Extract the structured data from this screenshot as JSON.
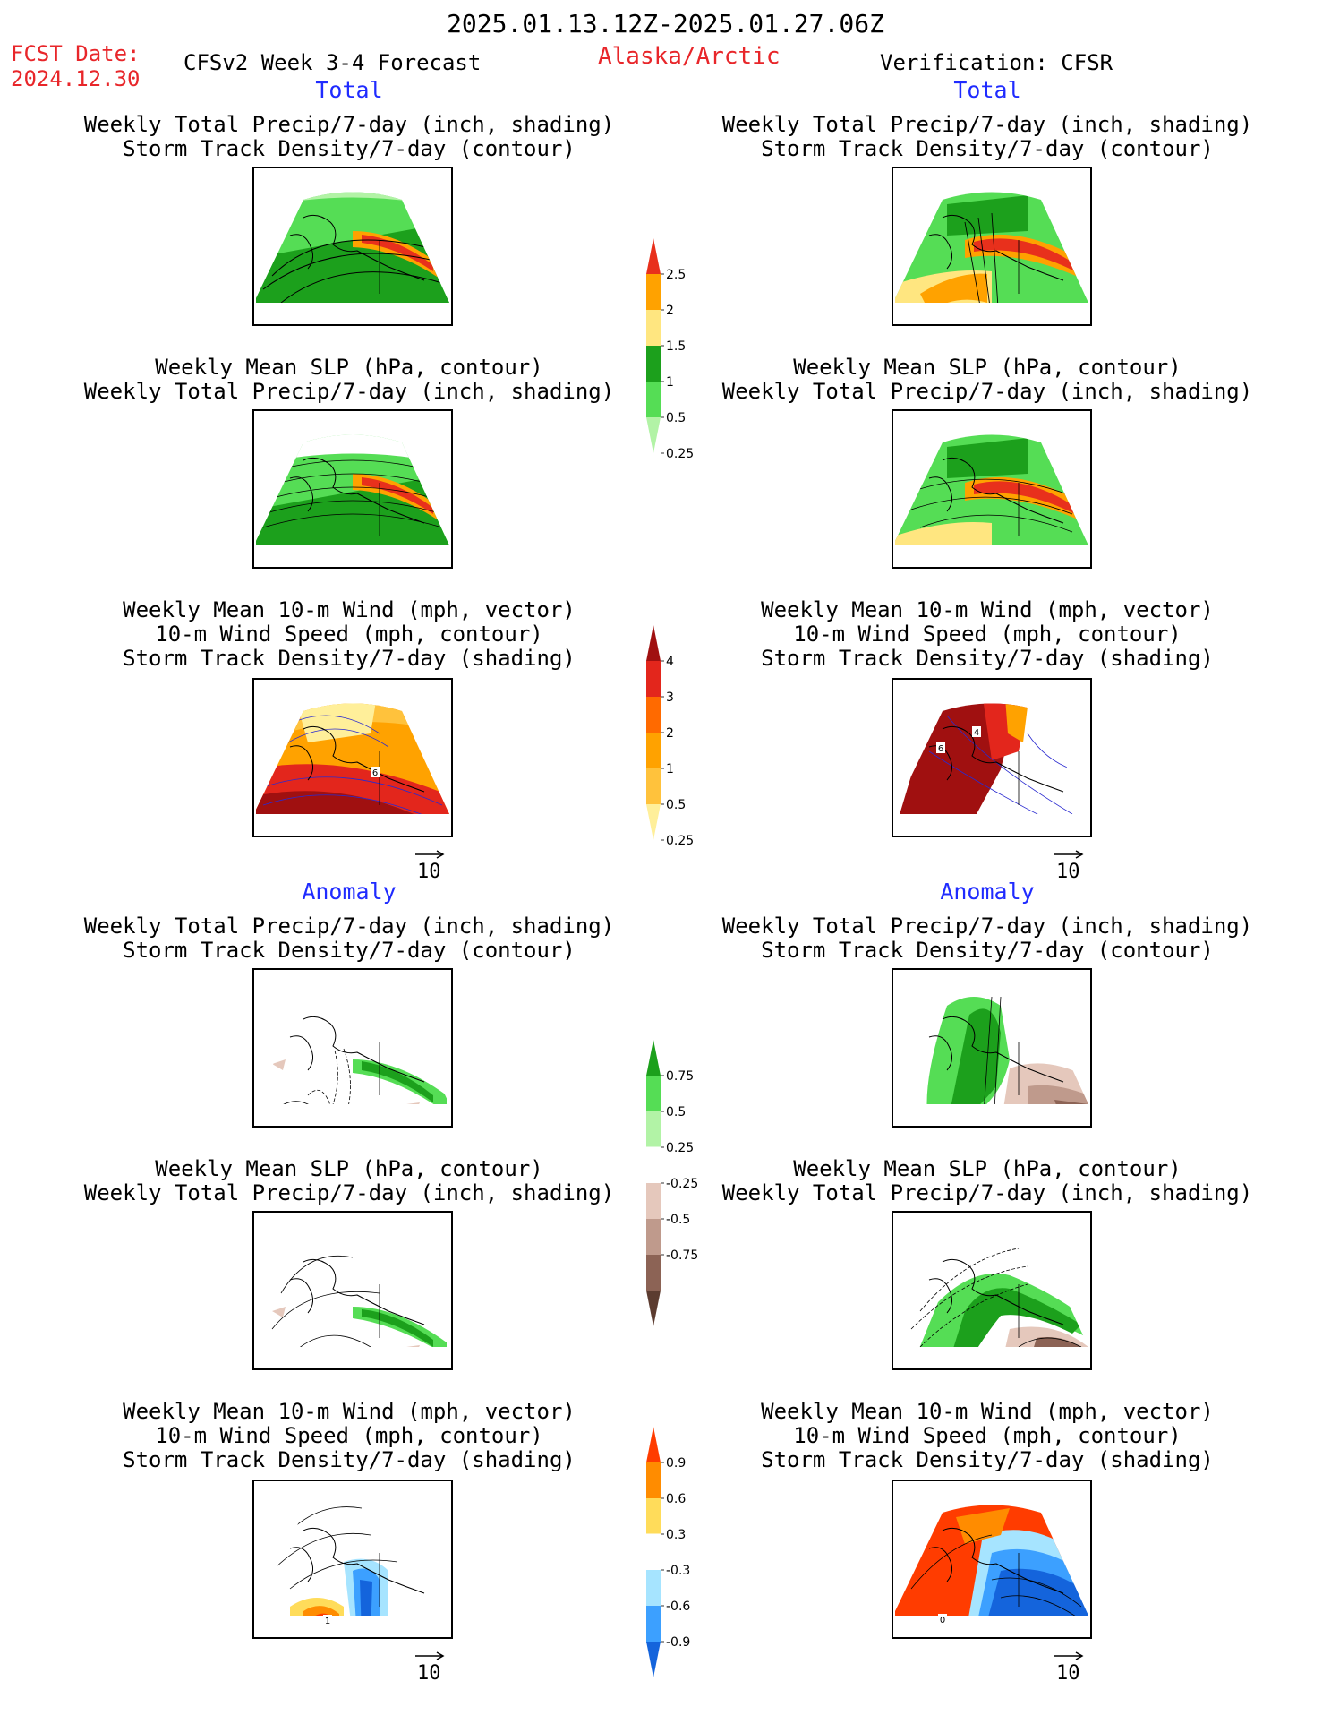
{
  "header": {
    "period": "2025.01.13.12Z-2025.01.27.06Z",
    "fcst_date_label": "FCST Date:",
    "fcst_date_value": "2024.12.30",
    "model": "CFSv2 Week 3-4 Forecast",
    "region": "Alaska/Arctic",
    "verification": "Verification: CFSR"
  },
  "sections": {
    "total_left": "Total",
    "total_right": "Total",
    "anomaly_left": "Anomaly",
    "anomaly_right": "Anomaly"
  },
  "panel_titles": {
    "precip_storm": [
      "Weekly Total Precip/7-day (inch, shading)",
      "Storm Track Density/7-day (contour)"
    ],
    "slp_precip": [
      "Weekly Mean SLP (hPa, contour)",
      "Weekly Total Precip/7-day (inch, shading)"
    ],
    "wind_storm": [
      "Weekly Mean 10-m Wind (mph, vector)",
      "10-m Wind Speed (mph, contour)",
      "Storm Track Density/7-day (shading)"
    ]
  },
  "vector_reference": "10",
  "map_labels": {
    "total_wind_left": "6",
    "total_wind_right_a": "4",
    "total_wind_right_b": "6",
    "anom_wind_left": "1",
    "anom_wind_right": "0"
  },
  "colorbars": {
    "precip_total": {
      "ticks": [
        "2.5",
        "2",
        "1.5",
        "1",
        "0.5",
        "0.25"
      ],
      "colors": [
        "#e8301c",
        "#ffa200",
        "#ffe680",
        "#1ca01c",
        "#55dd55",
        "#b2f3a6"
      ]
    },
    "storm_total": {
      "ticks": [
        "4",
        "3",
        "2",
        "1",
        "0.5",
        "0.25"
      ],
      "colors": [
        "#a01010",
        "#e3261c",
        "#ff6a00",
        "#ffa200",
        "#ffc23c",
        "#ffef9a"
      ]
    },
    "precip_anom": {
      "ticks": [
        "0.75",
        "0.5",
        "0.25",
        "-0.25",
        "-0.5",
        "-0.75"
      ],
      "colors": [
        "#1ca01c",
        "#55dd55",
        "#b2f3a6",
        "#ffffff",
        "#e5c8bc",
        "#bf9a8c",
        "#8c6355",
        "#5c3c30"
      ]
    },
    "storm_anom": {
      "ticks": [
        "0.9",
        "0.6",
        "0.3",
        "-0.3",
        "-0.6",
        "-0.9"
      ],
      "colors": [
        "#ff3c00",
        "#ff8c00",
        "#ffdc5a",
        "#ffffff",
        "#a6e4ff",
        "#3ca0ff",
        "#1464dc"
      ]
    }
  }
}
